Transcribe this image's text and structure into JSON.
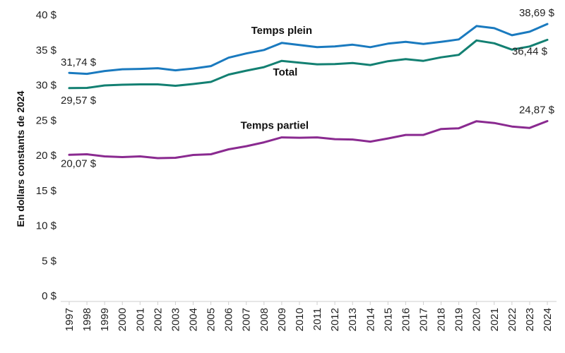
{
  "chart_data": {
    "type": "line",
    "ylabel": "En dollars constants de 2024",
    "ylim": [
      0,
      40
    ],
    "yticks": [
      0,
      5,
      10,
      15,
      20,
      25,
      30,
      35,
      40
    ],
    "ytick_labels": [
      "0 $",
      "5 $",
      "10 $",
      "15 $",
      "20 $",
      "25 $",
      "30 $",
      "35 $",
      "40 $"
    ],
    "x": [
      "1997",
      "1998",
      "1999",
      "2000",
      "2001",
      "2002",
      "2003",
      "2004",
      "2005",
      "2006",
      "2007",
      "2008",
      "2009",
      "2010",
      "2011",
      "2012",
      "2013",
      "2014",
      "2015",
      "2016",
      "2017",
      "2018",
      "2019",
      "2020",
      "2021",
      "2022",
      "2023",
      "2024"
    ],
    "grid": false,
    "legend": "none",
    "series": [
      {
        "name": "Temps plein",
        "color": "#1a7abf",
        "values": [
          31.74,
          31.6,
          32.0,
          32.25,
          32.3,
          32.4,
          32.1,
          32.35,
          32.7,
          33.9,
          34.5,
          35.0,
          36.0,
          35.7,
          35.4,
          35.5,
          35.75,
          35.4,
          35.9,
          36.15,
          35.85,
          36.15,
          36.5,
          38.4,
          38.1,
          37.1,
          37.6,
          38.69
        ]
      },
      {
        "name": "Total",
        "color": "#138072",
        "values": [
          29.57,
          29.6,
          29.95,
          30.05,
          30.1,
          30.1,
          29.9,
          30.15,
          30.45,
          31.5,
          32.05,
          32.55,
          33.45,
          33.2,
          32.95,
          33.0,
          33.15,
          32.85,
          33.4,
          33.7,
          33.45,
          33.95,
          34.3,
          36.35,
          35.95,
          35.05,
          35.5,
          36.44
        ]
      },
      {
        "name": "Temps partiel",
        "color": "#8a2a90",
        "values": [
          20.07,
          20.15,
          19.85,
          19.75,
          19.85,
          19.6,
          19.65,
          20.05,
          20.15,
          20.85,
          21.3,
          21.85,
          22.55,
          22.5,
          22.55,
          22.3,
          22.25,
          21.95,
          22.4,
          22.9,
          22.9,
          23.75,
          23.85,
          24.85,
          24.6,
          24.1,
          23.9,
          24.87
        ]
      }
    ],
    "annotations": [
      {
        "text": "31,74 $",
        "series": 0,
        "index": 0
      },
      {
        "text": "38,69 $",
        "series": 0,
        "index": 27
      },
      {
        "text": "29,57 $",
        "series": 1,
        "index": 0
      },
      {
        "text": "36,44 $",
        "series": 1,
        "index": 27
      },
      {
        "text": "20,07 $",
        "series": 2,
        "index": 0
      },
      {
        "text": "24,87 $",
        "series": 2,
        "index": 27
      }
    ]
  }
}
